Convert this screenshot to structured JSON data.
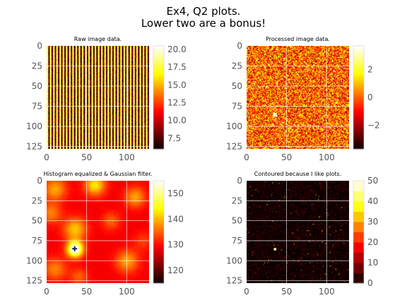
{
  "figure": {
    "title_line1": "Ex4, Q2 plots.",
    "title_line2": "Lower two are a bonus!"
  },
  "chart_data": [
    {
      "type": "heatmap",
      "title": "Raw image data.",
      "colormap": "hot",
      "pattern": "vertical-stripes",
      "xticks": [
        "0",
        "50",
        "100"
      ],
      "yticks": [
        "0",
        "25",
        "50",
        "75",
        "100",
        "125"
      ],
      "colorbar_ticks": [
        "20.0",
        "17.5",
        "15.0",
        "12.5",
        "10.0",
        "7.5"
      ],
      "colorbar_range": [
        6,
        20.5
      ],
      "grid": true
    },
    {
      "type": "heatmap",
      "title": "Processed image data.",
      "colormap": "hot",
      "pattern": "noise",
      "xticks": [
        "0",
        "50",
        "100"
      ],
      "yticks": [
        "0",
        "25",
        "50",
        "75",
        "100",
        "125"
      ],
      "colorbar_ticks": [
        "2",
        "0",
        "−2"
      ],
      "colorbar_range": [
        -3.7,
        3.7
      ],
      "grid": true
    },
    {
      "type": "heatmap",
      "title": "Histogram equalized & Gaussian filter.",
      "colormap": "hot",
      "pattern": "smooth-blobs",
      "marker": "+",
      "marker_at": [
        35,
        85
      ],
      "xticks": [
        "0",
        "50",
        "100"
      ],
      "yticks": [
        "0",
        "25",
        "50",
        "75",
        "100",
        "125"
      ],
      "colorbar_ticks": [
        "150",
        "140",
        "130",
        "120"
      ],
      "colorbar_range": [
        115,
        155
      ],
      "grid": true
    },
    {
      "type": "heatmap",
      "title": "Contoured because I like plots.",
      "colormap": "hot",
      "pattern": "sparse-dots",
      "xticks": [
        "0",
        "50",
        "100"
      ],
      "yticks": [
        "0",
        "25",
        "50",
        "75",
        "100",
        "125"
      ],
      "colorbar_ticks": [
        "50",
        "40",
        "30",
        "20",
        "10",
        "0"
      ],
      "colorbar_range": [
        0,
        50
      ],
      "colorbar_levels": 10,
      "grid": true
    }
  ]
}
